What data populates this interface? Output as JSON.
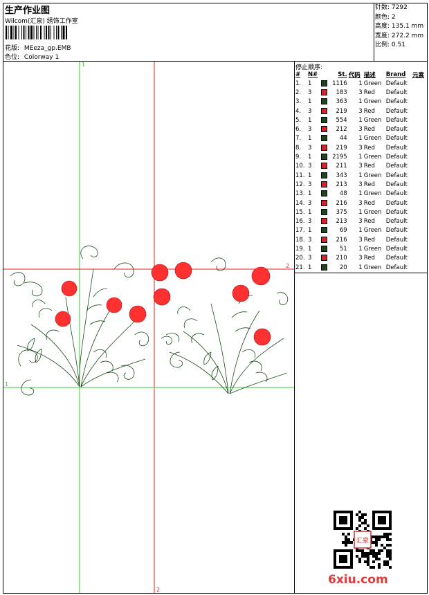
{
  "header": {
    "title": "生产作业图",
    "studio": "Wilcom(汇泉) 绣饰工作室",
    "design_label": "花版:",
    "design_value": "MEeza_gp.EMB",
    "colorway_label": "色位:",
    "colorway_value": "Colorway 1"
  },
  "stats": [
    {
      "label": "针数:",
      "value": "7292"
    },
    {
      "label": "颜色:",
      "value": "2"
    },
    {
      "label": "高度:",
      "value": "135.1 mm"
    },
    {
      "label": "宽度:",
      "value": "272.2 mm"
    },
    {
      "label": "比例:",
      "value": "0.51"
    }
  ],
  "guides": {
    "green_v": "1",
    "green_h": "1",
    "red_h": "2",
    "red_v": "2",
    "green_color": "#2ecc2e",
    "red_color": "#e02020"
  },
  "stop_sequence": {
    "title": "停止顺序:",
    "columns": [
      "#",
      "N#",
      "",
      "St.",
      "代码",
      "描述",
      "Brand",
      "元素"
    ],
    "rows": [
      {
        "idx": "1.",
        "n": "1",
        "color": "#1a4a1a",
        "st": "1116",
        "code": "1",
        "desc": "Green",
        "brand": "Default"
      },
      {
        "idx": "2.",
        "n": "3",
        "color": "#e02020",
        "st": "183",
        "code": "3",
        "desc": "Red",
        "brand": "Default"
      },
      {
        "idx": "3.",
        "n": "1",
        "color": "#1a4a1a",
        "st": "363",
        "code": "1",
        "desc": "Green",
        "brand": "Default"
      },
      {
        "idx": "4.",
        "n": "3",
        "color": "#e02020",
        "st": "219",
        "code": "3",
        "desc": "Red",
        "brand": "Default"
      },
      {
        "idx": "5.",
        "n": "1",
        "color": "#1a4a1a",
        "st": "554",
        "code": "1",
        "desc": "Green",
        "brand": "Default"
      },
      {
        "idx": "6.",
        "n": "3",
        "color": "#e02020",
        "st": "212",
        "code": "3",
        "desc": "Red",
        "brand": "Default"
      },
      {
        "idx": "7.",
        "n": "1",
        "color": "#1a4a1a",
        "st": "44",
        "code": "1",
        "desc": "Green",
        "brand": "Default"
      },
      {
        "idx": "8.",
        "n": "3",
        "color": "#e02020",
        "st": "219",
        "code": "3",
        "desc": "Red",
        "brand": "Default"
      },
      {
        "idx": "9.",
        "n": "1",
        "color": "#1a4a1a",
        "st": "2195",
        "code": "1",
        "desc": "Green",
        "brand": "Default"
      },
      {
        "idx": "10.",
        "n": "3",
        "color": "#e02020",
        "st": "211",
        "code": "3",
        "desc": "Red",
        "brand": "Default"
      },
      {
        "idx": "11.",
        "n": "1",
        "color": "#1a4a1a",
        "st": "343",
        "code": "1",
        "desc": "Green",
        "brand": "Default"
      },
      {
        "idx": "12.",
        "n": "3",
        "color": "#e02020",
        "st": "213",
        "code": "3",
        "desc": "Red",
        "brand": "Default"
      },
      {
        "idx": "13.",
        "n": "1",
        "color": "#1a4a1a",
        "st": "48",
        "code": "1",
        "desc": "Green",
        "brand": "Default"
      },
      {
        "idx": "14.",
        "n": "3",
        "color": "#e02020",
        "st": "216",
        "code": "3",
        "desc": "Red",
        "brand": "Default"
      },
      {
        "idx": "15.",
        "n": "1",
        "color": "#1a4a1a",
        "st": "375",
        "code": "1",
        "desc": "Green",
        "brand": "Default"
      },
      {
        "idx": "16.",
        "n": "3",
        "color": "#e02020",
        "st": "213",
        "code": "3",
        "desc": "Red",
        "brand": "Default"
      },
      {
        "idx": "17.",
        "n": "1",
        "color": "#1a4a1a",
        "st": "69",
        "code": "1",
        "desc": "Green",
        "brand": "Default"
      },
      {
        "idx": "18.",
        "n": "3",
        "color": "#e02020",
        "st": "216",
        "code": "3",
        "desc": "Red",
        "brand": "Default"
      },
      {
        "idx": "19.",
        "n": "1",
        "color": "#1a4a1a",
        "st": "51",
        "code": "1",
        "desc": "Green",
        "brand": "Default"
      },
      {
        "idx": "20.",
        "n": "3",
        "color": "#e02020",
        "st": "210",
        "code": "3",
        "desc": "Red",
        "brand": "Default"
      },
      {
        "idx": "21.",
        "n": "1",
        "color": "#1a4a1a",
        "st": "20",
        "code": "1",
        "desc": "Green",
        "brand": "Default"
      }
    ]
  },
  "watermark": "6xiu.com",
  "qr_seal": "汇泉"
}
